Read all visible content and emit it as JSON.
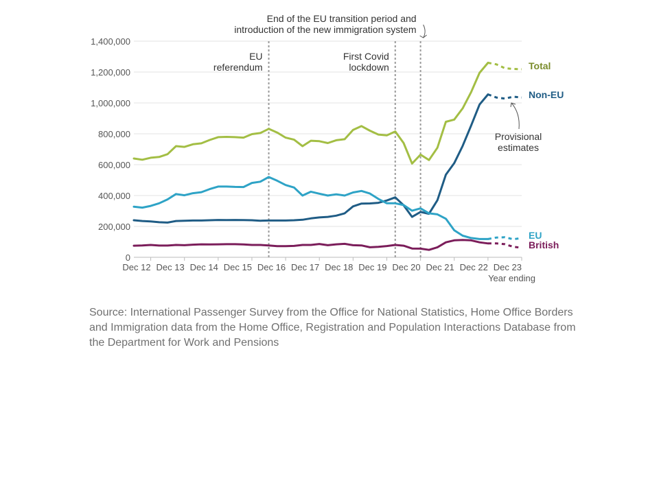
{
  "chart_data": {
    "type": "line",
    "ylim": [
      0,
      1400000
    ],
    "y_ticks": [
      0,
      200000,
      400000,
      600000,
      800000,
      1000000,
      1200000,
      1400000
    ],
    "y_tick_labels": [
      "0",
      "200,000",
      "400,000",
      "600,000",
      "800,000",
      "1,000,000",
      "1,200,000",
      "1,400,000"
    ],
    "x_tick_labels": [
      "Dec 12",
      "Dec 13",
      "Dec 14",
      "Dec 15",
      "Dec 16",
      "Dec 17",
      "Dec 18",
      "Dec 19",
      "Dec 20",
      "Dec 21",
      "Dec 22",
      "Dec 23"
    ],
    "x_label": "Year ending",
    "grid": true,
    "series": [
      {
        "name": "Total",
        "color": "#a3be44",
        "label_color": "#7a8c2c",
        "points": [
          [
            "Jun 12",
            640000
          ],
          [
            "Sep 12",
            632000
          ],
          [
            "Dec 12",
            645000
          ],
          [
            "Mar 13",
            650000
          ],
          [
            "Jun 13",
            668000
          ],
          [
            "Sep 13",
            720000
          ],
          [
            "Dec 13",
            715000
          ],
          [
            "Mar 14",
            732000
          ],
          [
            "Jun 14",
            738000
          ],
          [
            "Sep 14",
            760000
          ],
          [
            "Dec 14",
            778000
          ],
          [
            "Mar 15",
            780000
          ],
          [
            "Jun 15",
            778000
          ],
          [
            "Sep 15",
            775000
          ],
          [
            "Dec 15",
            798000
          ],
          [
            "Mar 16",
            805000
          ],
          [
            "Jun 16",
            832000
          ],
          [
            "Sep 16",
            808000
          ],
          [
            "Dec 16",
            775000
          ],
          [
            "Mar 17",
            762000
          ],
          [
            "Jun 17",
            720000
          ],
          [
            "Sep 17",
            755000
          ],
          [
            "Dec 17",
            752000
          ],
          [
            "Mar 18",
            740000
          ],
          [
            "Jun 18",
            758000
          ],
          [
            "Sep 18",
            765000
          ],
          [
            "Dec 18",
            825000
          ],
          [
            "Mar 19",
            850000
          ],
          [
            "Jun 19",
            820000
          ],
          [
            "Sep 19",
            795000
          ],
          [
            "Dec 19",
            790000
          ],
          [
            "Mar 20",
            815000
          ],
          [
            "Jun 20",
            740000
          ],
          [
            "Sep 20",
            607000
          ],
          [
            "Dec 20",
            665000
          ],
          [
            "Mar 21",
            630000
          ],
          [
            "Jun 21",
            710000
          ],
          [
            "Sep 21",
            878000
          ],
          [
            "Dec 21",
            892000
          ],
          [
            "Mar 22",
            965000
          ],
          [
            "Jun 22",
            1070000
          ],
          [
            "Sep 22",
            1195000
          ],
          [
            "Dec 22",
            1260000
          ]
        ],
        "provisional": [
          [
            "Dec 22",
            1260000
          ],
          [
            "Mar 23",
            1250000
          ],
          [
            "Jun 23",
            1225000
          ],
          [
            "Sep 23",
            1220000
          ],
          [
            "Dec 23",
            1218000
          ]
        ]
      },
      {
        "name": "Non-EU",
        "color": "#1f5c85",
        "label_color": "#1f5c85",
        "points": [
          [
            "Jun 12",
            240000
          ],
          [
            "Sep 12",
            235000
          ],
          [
            "Dec 12",
            232000
          ],
          [
            "Mar 13",
            227000
          ],
          [
            "Jun 13",
            225000
          ],
          [
            "Sep 13",
            235000
          ],
          [
            "Dec 13",
            237000
          ],
          [
            "Mar 14",
            238000
          ],
          [
            "Jun 14",
            238000
          ],
          [
            "Sep 14",
            240000
          ],
          [
            "Dec 14",
            242000
          ],
          [
            "Mar 15",
            241000
          ],
          [
            "Jun 15",
            242000
          ],
          [
            "Sep 15",
            241000
          ],
          [
            "Dec 15",
            240000
          ],
          [
            "Mar 16",
            237000
          ],
          [
            "Jun 16",
            238000
          ],
          [
            "Sep 16",
            238000
          ],
          [
            "Dec 16",
            238000
          ],
          [
            "Mar 17",
            240000
          ],
          [
            "Jun 17",
            243000
          ],
          [
            "Sep 17",
            252000
          ],
          [
            "Dec 17",
            258000
          ],
          [
            "Mar 18",
            262000
          ],
          [
            "Jun 18",
            270000
          ],
          [
            "Sep 18",
            285000
          ],
          [
            "Dec 18",
            330000
          ],
          [
            "Mar 19",
            348000
          ],
          [
            "Jun 19",
            349000
          ],
          [
            "Sep 19",
            353000
          ],
          [
            "Dec 19",
            368000
          ],
          [
            "Mar 20",
            388000
          ],
          [
            "Jun 20",
            337000
          ],
          [
            "Sep 20",
            262000
          ],
          [
            "Dec 20",
            294000
          ],
          [
            "Mar 21",
            282000
          ],
          [
            "Jun 21",
            370000
          ],
          [
            "Sep 21",
            535000
          ],
          [
            "Dec 21",
            610000
          ],
          [
            "Mar 22",
            722000
          ],
          [
            "Jun 22",
            853000
          ],
          [
            "Sep 22",
            990000
          ],
          [
            "Dec 22",
            1055000
          ]
        ],
        "provisional": [
          [
            "Dec 22",
            1055000
          ],
          [
            "Mar 23",
            1035000
          ],
          [
            "Jun 23",
            1028000
          ],
          [
            "Sep 23",
            1040000
          ],
          [
            "Dec 23",
            1035000
          ]
        ]
      },
      {
        "name": "EU",
        "color": "#2ea3c6",
        "label_color": "#2ea3c6",
        "points": [
          [
            "Jun 12",
            328000
          ],
          [
            "Sep 12",
            322000
          ],
          [
            "Dec 12",
            333000
          ],
          [
            "Mar 13",
            350000
          ],
          [
            "Jun 13",
            375000
          ],
          [
            "Sep 13",
            410000
          ],
          [
            "Dec 13",
            402000
          ],
          [
            "Mar 14",
            415000
          ],
          [
            "Jun 14",
            422000
          ],
          [
            "Sep 14",
            442000
          ],
          [
            "Dec 14",
            458000
          ],
          [
            "Mar 15",
            458000
          ],
          [
            "Jun 15",
            456000
          ],
          [
            "Sep 15",
            455000
          ],
          [
            "Dec 15",
            482000
          ],
          [
            "Mar 16",
            490000
          ],
          [
            "Jun 16",
            520000
          ],
          [
            "Sep 16",
            496000
          ],
          [
            "Dec 16",
            468000
          ],
          [
            "Mar 17",
            452000
          ],
          [
            "Jun 17",
            400000
          ],
          [
            "Sep 17",
            425000
          ],
          [
            "Dec 17",
            412000
          ],
          [
            "Mar 18",
            400000
          ],
          [
            "Jun 18",
            408000
          ],
          [
            "Sep 18",
            400000
          ],
          [
            "Dec 18",
            420000
          ],
          [
            "Mar 19",
            430000
          ],
          [
            "Jun 19",
            413000
          ],
          [
            "Sep 19",
            378000
          ],
          [
            "Dec 19",
            350000
          ],
          [
            "Mar 20",
            350000
          ],
          [
            "Jun 20",
            338000
          ],
          [
            "Sep 20",
            302000
          ],
          [
            "Dec 20",
            317000
          ],
          [
            "Mar 21",
            285000
          ],
          [
            "Jun 21",
            278000
          ],
          [
            "Sep 21",
            250000
          ],
          [
            "Dec 21",
            175000
          ],
          [
            "Mar 22",
            140000
          ],
          [
            "Jun 22",
            125000
          ],
          [
            "Sep 22",
            118000
          ],
          [
            "Dec 22",
            118000
          ]
        ],
        "provisional": [
          [
            "Dec 22",
            118000
          ],
          [
            "Mar 23",
            128000
          ],
          [
            "Jun 23",
            130000
          ],
          [
            "Sep 23",
            117000
          ],
          [
            "Dec 23",
            125000
          ]
        ]
      },
      {
        "name": "British",
        "color": "#7b1d5a",
        "label_color": "#7b1d5a",
        "points": [
          [
            "Jun 12",
            75000
          ],
          [
            "Sep 12",
            77000
          ],
          [
            "Dec 12",
            80000
          ],
          [
            "Mar 13",
            76000
          ],
          [
            "Jun 13",
            76000
          ],
          [
            "Sep 13",
            80000
          ],
          [
            "Dec 13",
            78000
          ],
          [
            "Mar 14",
            82000
          ],
          [
            "Jun 14",
            84000
          ],
          [
            "Sep 14",
            83000
          ],
          [
            "Dec 14",
            84000
          ],
          [
            "Mar 15",
            85000
          ],
          [
            "Jun 15",
            85000
          ],
          [
            "Sep 15",
            83000
          ],
          [
            "Dec 15",
            80000
          ],
          [
            "Mar 16",
            80000
          ],
          [
            "Jun 16",
            77000
          ],
          [
            "Sep 16",
            72000
          ],
          [
            "Dec 16",
            72000
          ],
          [
            "Mar 17",
            74000
          ],
          [
            "Jun 17",
            80000
          ],
          [
            "Sep 17",
            80000
          ],
          [
            "Dec 17",
            86000
          ],
          [
            "Mar 18",
            78000
          ],
          [
            "Jun 18",
            84000
          ],
          [
            "Sep 18",
            87000
          ],
          [
            "Dec 18",
            78000
          ],
          [
            "Mar 19",
            77000
          ],
          [
            "Jun 19",
            65000
          ],
          [
            "Sep 19",
            68000
          ],
          [
            "Dec 19",
            73000
          ],
          [
            "Mar 20",
            80000
          ],
          [
            "Jun 20",
            75000
          ],
          [
            "Sep 20",
            57000
          ],
          [
            "Dec 20",
            56000
          ],
          [
            "Mar 21",
            48000
          ],
          [
            "Jun 21",
            65000
          ],
          [
            "Sep 21",
            97000
          ],
          [
            "Dec 21",
            110000
          ],
          [
            "Mar 22",
            112000
          ],
          [
            "Jun 22",
            110000
          ],
          [
            "Sep 22",
            97000
          ],
          [
            "Dec 22",
            90000
          ]
        ],
        "provisional": [
          [
            "Dec 22",
            90000
          ],
          [
            "Mar 23",
            90000
          ],
          [
            "Jun 23",
            85000
          ],
          [
            "Sep 23",
            68000
          ],
          [
            "Dec 23",
            62000
          ]
        ]
      }
    ],
    "events": [
      {
        "date": "Jun 16",
        "lines": [
          "EU",
          "referendum"
        ],
        "anchor": "end"
      },
      {
        "date": "Mar 20",
        "lines": [
          "First Covid",
          "lockdown"
        ],
        "anchor": "end"
      },
      {
        "date": "Dec 20",
        "lines": [
          "End of the EU transition period and",
          "introduction of the new immigration system"
        ],
        "anchor": "end"
      }
    ],
    "provisional_note": [
      "Provisional",
      "estimates"
    ]
  },
  "source": "Source: International Passenger Survey from the Office for National Statistics, Home Office Borders and Immigration data from the Home Office, Registration and Population Interactions Database from the Department for Work and Pensions"
}
